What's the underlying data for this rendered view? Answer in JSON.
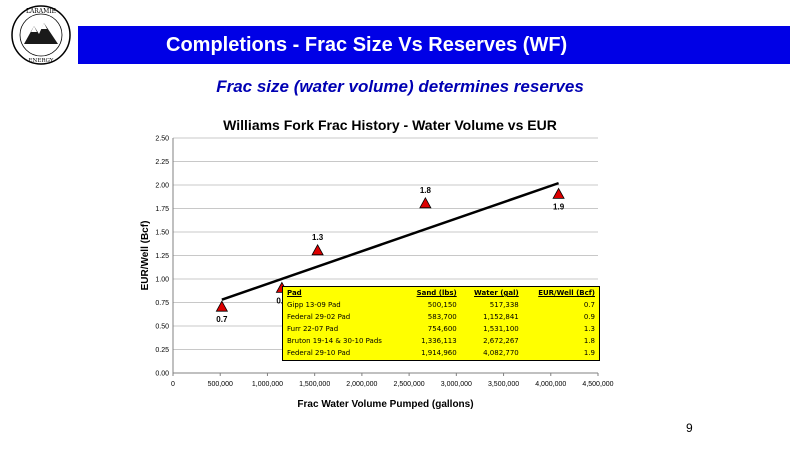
{
  "header": {
    "title": "Completions - Frac Size Vs Reserves (WF)",
    "subtitle": "Frac size (water volume) determines reserves",
    "page_number": "9"
  },
  "logo": {
    "top_text": "LARAMIE",
    "bottom_text": "ENERGY"
  },
  "colors": {
    "title_bar": "#0000e6",
    "subtitle": "#0000b3",
    "marker": "#dd0000",
    "table_bg": "#ffff00"
  },
  "chart_data": {
    "type": "scatter",
    "title": "Williams Fork Frac History - Water Volume vs EUR",
    "xlabel": "Frac Water Volume Pumped (gallons)",
    "ylabel": "EUR/Well (Bcf)",
    "xlim": [
      0,
      4500000
    ],
    "ylim": [
      0,
      2.5
    ],
    "x_ticks": [
      "0",
      "500,000",
      "1,000,000",
      "1,500,000",
      "2,000,000",
      "2,500,000",
      "3,000,000",
      "3,500,000",
      "4,000,000",
      "4,500,000"
    ],
    "y_ticks": [
      "0.00",
      "0.25",
      "0.50",
      "0.75",
      "1.00",
      "1.25",
      "1.50",
      "1.75",
      "2.00",
      "2.25",
      "2.50"
    ],
    "grid": "horizontal",
    "series": [
      {
        "marker": "triangle",
        "points": [
          {
            "x": 517338,
            "y": 0.7,
            "label": "0.7"
          },
          {
            "x": 1152841,
            "y": 0.9,
            "label": "0.9"
          },
          {
            "x": 1531100,
            "y": 1.3,
            "label": "1.3"
          },
          {
            "x": 2672267,
            "y": 1.8,
            "label": "1.8"
          },
          {
            "x": 4082770,
            "y": 1.9,
            "label": "1.9"
          }
        ]
      }
    ],
    "trendline": {
      "start": {
        "x": 517338,
        "y": 0.78
      },
      "end": {
        "x": 4082770,
        "y": 2.02
      }
    },
    "table": {
      "headers": [
        "Pad",
        "Sand (lbs)",
        "Water (gal)",
        "EUR/Well (Bcf)"
      ],
      "rows": [
        [
          "Gipp 13-09 Pad",
          "500,150",
          "517,338",
          "0.7"
        ],
        [
          "Federal 29-02 Pad",
          "583,700",
          "1,152,841",
          "0.9"
        ],
        [
          "Furr 22-07 Pad",
          "754,600",
          "1,531,100",
          "1.3"
        ],
        [
          "Bruton 19-14 & 30-10 Pads",
          "1,336,113",
          "2,672,267",
          "1.8"
        ],
        [
          "Federal 29-10 Pad",
          "1,914,960",
          "4,082,770",
          "1.9"
        ]
      ]
    }
  }
}
